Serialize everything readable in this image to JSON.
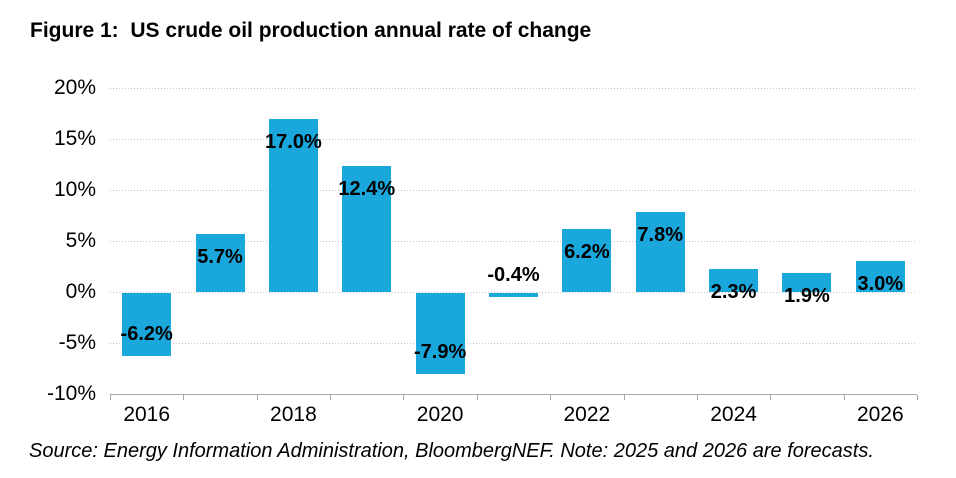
{
  "figure": {
    "title": "Figure 1:  US crude oil production annual rate of change",
    "source_note": "Source: Energy Information Administration, BloombergNEF. Note: 2025 and 2026 are forecasts."
  },
  "chart_data": {
    "type": "bar",
    "title": "Figure 1: US crude oil production annual rate of change",
    "categories": [
      2016,
      2017,
      2018,
      2019,
      2020,
      2021,
      2022,
      2023,
      2024,
      2025,
      2026
    ],
    "values": [
      -6.2,
      5.7,
      17.0,
      12.4,
      -7.9,
      -0.4,
      6.2,
      7.8,
      2.3,
      1.9,
      3.0
    ],
    "data_labels": [
      "-6.2%",
      "5.7%",
      "17.0%",
      "12.4%",
      "-7.9%",
      "-0.4%",
      "6.2%",
      "7.8%",
      "2.3%",
      "1.9%",
      "3.0%"
    ],
    "x_tick_labels": [
      "2016",
      "2018",
      "2020",
      "2022",
      "2024",
      "2026"
    ],
    "x_tick_years": [
      2016,
      2018,
      2020,
      2022,
      2024,
      2026
    ],
    "y_tick_labels": [
      "20%",
      "15%",
      "10%",
      "5%",
      "0%",
      "-5%",
      "-10%"
    ],
    "y_tick_values": [
      20,
      15,
      10,
      5,
      0,
      -5,
      -10
    ],
    "ylim": [
      -10,
      20
    ],
    "y_tick_step": 5,
    "grid": "horizontal-dotted",
    "legend": "none",
    "xlabel": "",
    "ylabel": "",
    "bar_color": "#1aa7db",
    "data_label_color": "#000000",
    "axis_line_color": "#a6a6a6",
    "gridline_color": "#c6c6c6",
    "note": "2025 and 2026 are forecasts"
  }
}
